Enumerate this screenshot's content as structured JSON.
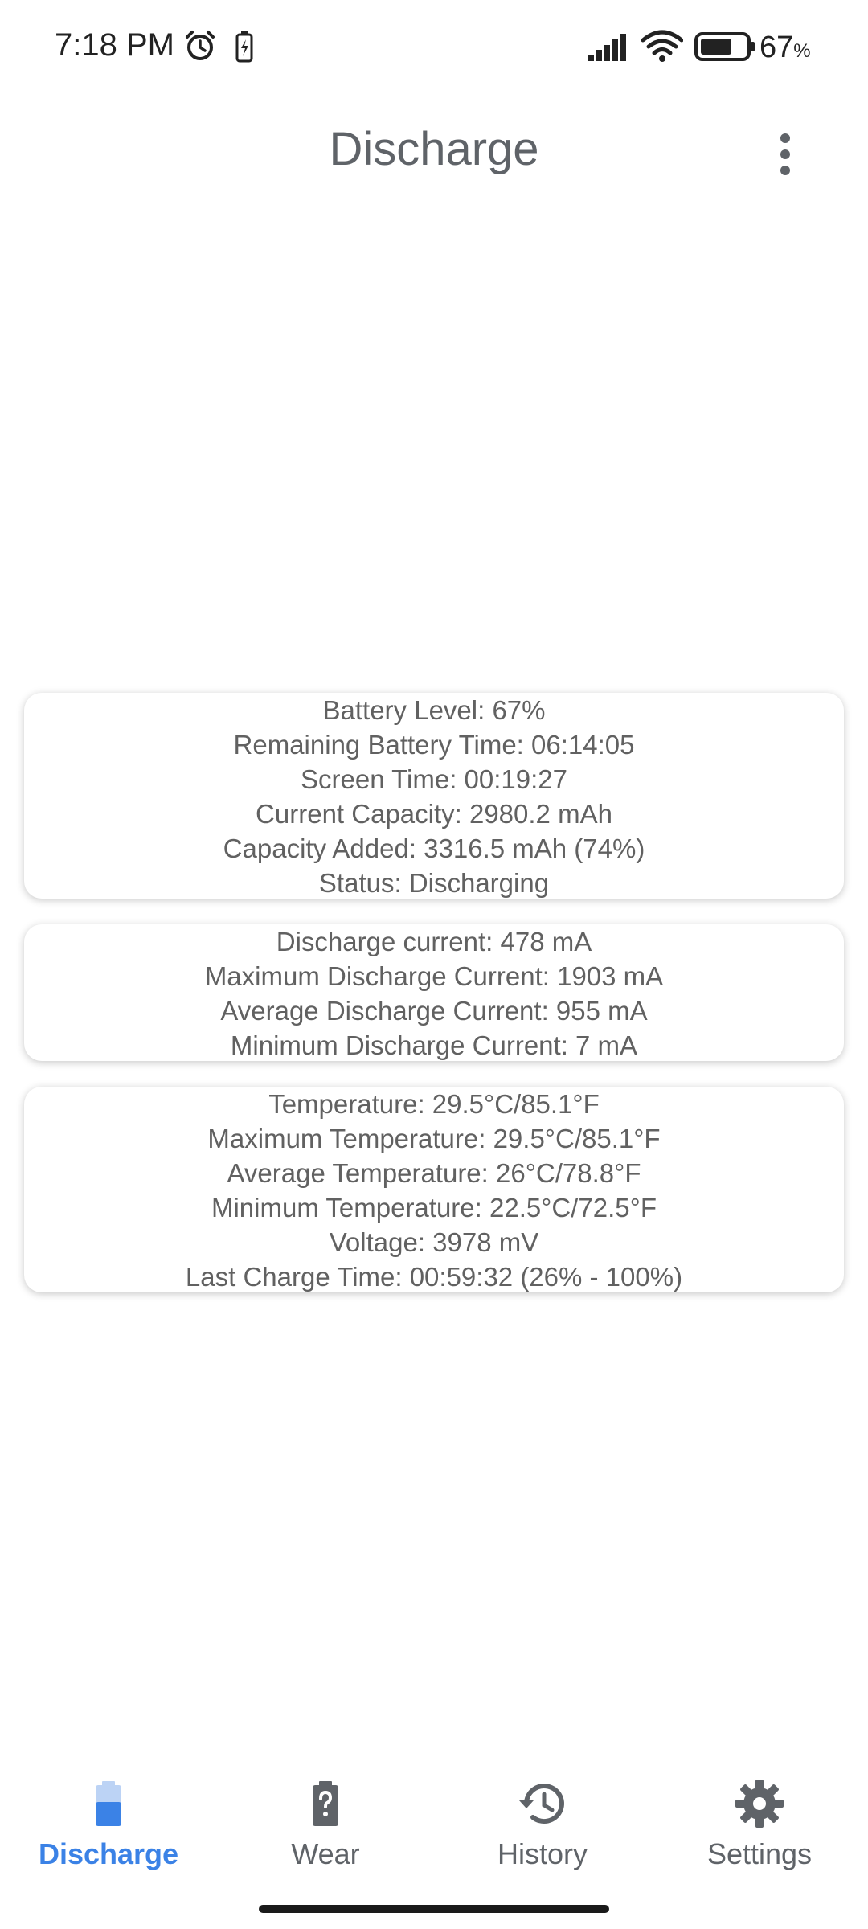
{
  "status_bar": {
    "time": "7:18 PM",
    "battery_percent": "67",
    "battery_percent_suffix": "%",
    "icons": [
      "alarm-icon",
      "battery-saver-icon",
      "signal-icon",
      "wifi-icon",
      "battery-icon"
    ]
  },
  "app_bar": {
    "title": "Discharge",
    "menu_icon": "overflow-menu-icon"
  },
  "cards": {
    "battery": [
      "Battery Level: 67%",
      "Remaining Battery Time: 06:14:05",
      "Screen Time: 00:19:27",
      "Current Capacity: 2980.2 mAh",
      "Capacity Added: 3316.5 mAh (74%)",
      "Status: Discharging"
    ],
    "current": [
      "Discharge current: 478 mA",
      "Maximum Discharge Current: 1903 mA",
      "Average Discharge Current: 955 mA",
      "Minimum Discharge Current: 7 mA"
    ],
    "temperature": [
      "Temperature: 29.5°C/85.1°F",
      "Maximum Temperature: 29.5°C/85.1°F",
      "Average Temperature: 26°C/78.8°F",
      "Minimum Temperature: 22.5°C/72.5°F",
      "Voltage: 3978 mV",
      "Last Charge Time: 00:59:32 (26% - 100%)"
    ]
  },
  "bottom_nav": {
    "items": [
      {
        "label": "Discharge",
        "icon": "battery-icon",
        "active": true
      },
      {
        "label": "Wear",
        "icon": "battery-unknown-icon",
        "active": false
      },
      {
        "label": "History",
        "icon": "history-icon",
        "active": false
      },
      {
        "label": "Settings",
        "icon": "gear-icon",
        "active": false
      }
    ]
  },
  "colors": {
    "accent": "#3b82e6",
    "text": "#5f6368",
    "card_text": "#616161",
    "background": "#ffffff"
  }
}
